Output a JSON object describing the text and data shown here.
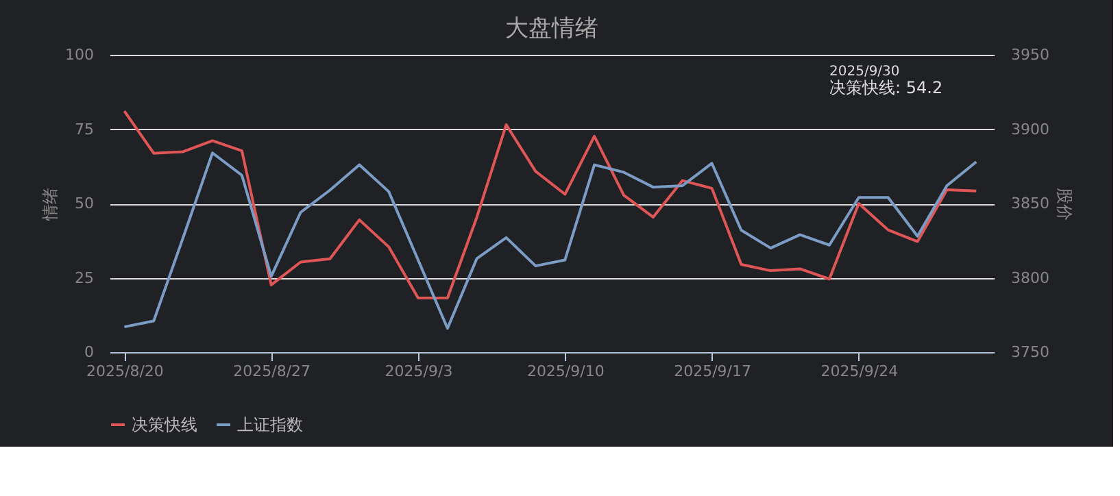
{
  "chart_data": {
    "type": "line",
    "title": "大盘情绪",
    "ylabel": "情绪",
    "y2label": "股价",
    "categories": [
      "2025/8/20",
      null,
      null,
      null,
      null,
      "2025/8/27",
      null,
      null,
      null,
      null,
      "2025/9/3",
      null,
      null,
      null,
      null,
      "2025/9/10",
      null,
      null,
      null,
      null,
      "2025/9/17",
      null,
      null,
      null,
      null,
      "2025/9/24",
      null,
      null,
      null,
      null
    ],
    "series": [
      {
        "name": "决策快线",
        "color": "#e05656",
        "values": [
          81.1,
          66.9,
          67.4,
          71.1,
          67.7,
          22.6,
          30.3,
          31.4,
          44.5,
          35.4,
          18.2,
          18.2,
          45.4,
          76.5,
          60.8,
          53.1,
          72.6,
          52.8,
          45.4,
          57.7,
          55.1,
          29.5,
          27.4,
          28.0,
          24.6,
          50.0,
          41.1,
          37.2,
          54.6,
          54.2
        ]
      },
      {
        "name": "上证指数",
        "color": "#7b9cc4",
        "axis": "y2",
        "values": [
          3767,
          3771,
          3827,
          3884,
          3869,
          3801,
          3844,
          3859,
          3876,
          3858,
          3812,
          3766,
          3813,
          3827,
          3808,
          3812,
          3876,
          3871,
          3861,
          3862,
          3877,
          3832,
          3820,
          3829,
          3822,
          3854,
          3854,
          3828,
          3862,
          3878
        ]
      }
    ],
    "ylim": [
      0,
      100
    ],
    "yticks": [
      0,
      25,
      50,
      75,
      100
    ],
    "y2lim": [
      3750,
      3950
    ],
    "y2ticks": [
      3750,
      3800,
      3850,
      3900,
      3950
    ],
    "grid": "y",
    "legend": "bottom",
    "marker": "none",
    "line_style": "solid",
    "annotations": [
      "2025/9/30",
      "决策快线: 54.2"
    ]
  }
}
